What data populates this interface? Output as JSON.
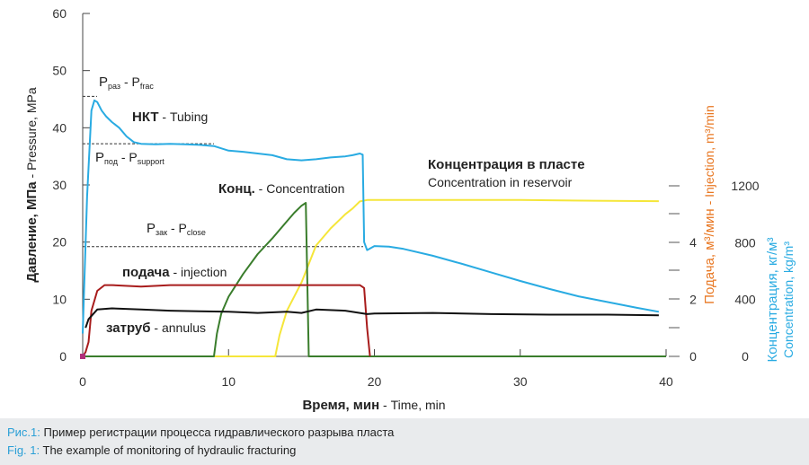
{
  "chart_data": {
    "type": "line",
    "xlabel": "Время, мин - Time, min",
    "ylabel": "Давление, МПа - Pressure, MPa",
    "y2label": "Подача, м³/мин - Injection, m³/min",
    "y3label": "Концентрация, кг/м³ Concentration, kg/m³",
    "xlim": [
      0,
      40
    ],
    "ylim": [
      0,
      60
    ],
    "xticks": [
      0,
      10,
      20,
      30,
      40
    ],
    "yticks": [
      0,
      10,
      20,
      30,
      40,
      50,
      60
    ],
    "y2ticks": [
      0,
      2,
      4
    ],
    "y3ticks": [
      0,
      400,
      800,
      1200
    ],
    "hlines": [
      {
        "label_main": "Р",
        "label_sub": "раз",
        "label_rest": " - P",
        "label_sub2": "frac",
        "y": 45.5
      },
      {
        "label_main": "Р",
        "label_sub": "под",
        "label_rest": " - P",
        "label_sub2": "support",
        "y": 37.2
      },
      {
        "label_main": "Р",
        "label_sub": "зак",
        "label_rest": " - P",
        "label_sub2": "close",
        "y": 19.2
      }
    ],
    "series": [
      {
        "name": "НКТ - Tubing",
        "color": "#29abe2",
        "x": [
          0,
          0.3,
          0.6,
          0.8,
          1.0,
          1.3,
          1.6,
          2.0,
          2.5,
          3.0,
          3.5,
          4.0,
          5.0,
          6.0,
          7.0,
          8.0,
          9.0,
          10.0,
          11.0,
          12.0,
          13.0,
          14.0,
          15.0,
          16.0,
          17.0,
          18.0,
          18.5,
          19.0,
          19.2,
          19.3,
          19.5,
          20.0,
          21.0,
          22.0,
          24.0,
          26.0,
          28.0,
          30.0,
          32.0,
          34.0,
          36.0,
          38.0,
          39.5
        ],
        "y": [
          4,
          28,
          43,
          44.8,
          44.5,
          43,
          42,
          41,
          40,
          38.5,
          37.5,
          37.2,
          37.1,
          37.2,
          37.1,
          37.0,
          36.8,
          36.0,
          35.8,
          35.5,
          35.2,
          34.5,
          34.3,
          34.5,
          34.8,
          35.0,
          35.2,
          35.5,
          35.3,
          20,
          18.6,
          19.3,
          19.2,
          18.8,
          17.6,
          16.2,
          14.7,
          13.2,
          11.8,
          10.5,
          9.5,
          8.5,
          7.8
        ]
      },
      {
        "name": "затруб - annulus",
        "color": "#111111",
        "x": [
          0.2,
          0.4,
          1.0,
          2.0,
          4.0,
          6.0,
          8.0,
          10.0,
          12.0,
          14.0,
          15.0,
          16.0,
          18.0,
          19.0,
          19.5,
          20.0,
          24.0,
          28.0,
          32.0,
          36.0,
          39.5
        ],
        "y": [
          5,
          6.5,
          8.2,
          8.4,
          8.2,
          8.0,
          7.9,
          7.8,
          7.6,
          7.8,
          7.6,
          8.2,
          8.0,
          7.6,
          7.4,
          7.5,
          7.6,
          7.4,
          7.3,
          7.3,
          7.2
        ]
      },
      {
        "name": "подача - injection",
        "axis": "injection",
        "color": "#a81c1c",
        "x": [
          0,
          0.2,
          0.4,
          0.6,
          1.0,
          1.5,
          2.0,
          4.0,
          6.0,
          8.0,
          10.0,
          12.0,
          14.0,
          16.0,
          18.0,
          19.0,
          19.3,
          19.5,
          19.7
        ],
        "y": [
          0,
          0.15,
          0.5,
          1.6,
          2.3,
          2.5,
          2.5,
          2.45,
          2.5,
          2.5,
          2.5,
          2.5,
          2.5,
          2.5,
          2.5,
          2.5,
          2.4,
          1.0,
          0
        ]
      },
      {
        "name": "Конц. - Concentration",
        "axis": "concentration",
        "color": "#3a7d2c",
        "x": [
          0,
          9.0,
          9.2,
          9.5,
          10.0,
          11.0,
          12.0,
          13.0,
          14.0,
          14.5,
          15.0,
          15.3,
          15.5,
          40
        ],
        "y": [
          0,
          0,
          160,
          300,
          420,
          580,
          720,
          830,
          950,
          1010,
          1060,
          1080,
          0,
          0
        ]
      },
      {
        "name": "Концентрация в пласте Concentration in reservoir",
        "axis": "concentration",
        "color": "#f5e63a",
        "x": [
          0,
          13.2,
          13.5,
          14.0,
          15.0,
          16.0,
          17.0,
          18.0,
          18.5,
          19.0,
          19.5,
          25.0,
          30.0,
          35.0,
          39.5
        ],
        "y": [
          0,
          0,
          150,
          320,
          520,
          780,
          900,
          1000,
          1040,
          1090,
          1100,
          1100,
          1100,
          1095,
          1092
        ]
      }
    ],
    "labels": {
      "tubing_main": "НКТ",
      "tubing_rest": " - Tubing",
      "annulus_main": "затруб",
      "annulus_rest": " - annulus",
      "injection_main": "подача",
      "injection_rest": " - injection",
      "conc_main": "Конц.",
      "conc_rest": " - Concentration",
      "reservoir_line1": "Концентрация в пласте",
      "reservoir_line2": "Concentration in reservoir",
      "xlabel_main": "Время, мин",
      "xlabel_rest": " - Time, min",
      "ylabel_main": "Давление, МПа",
      "ylabel_rest": " - Pressure, MPa",
      "y2label_main": "Подача, м³/мин",
      "y2label_rest": " - Injection, m³/min",
      "y3label_line1": "Концентрация, кг/м³",
      "y3label_line2": "Concentration, kg/m³"
    }
  },
  "caption": {
    "ru_key": "Рис.1:",
    "ru_text": " Пример регистрации процесса гидравлического разрыва пласта",
    "en_key": "Fig. 1:",
    "en_text": " The example of monitoring of hydraulic fracturing"
  },
  "colors": {
    "tubing": "#29abe2",
    "annulus": "#111111",
    "injection": "#a81c1c",
    "injection_axis": "#e87722",
    "concentration": "#3a7d2c",
    "reservoir": "#f5e63a",
    "concentration_axis": "#29abe2"
  }
}
